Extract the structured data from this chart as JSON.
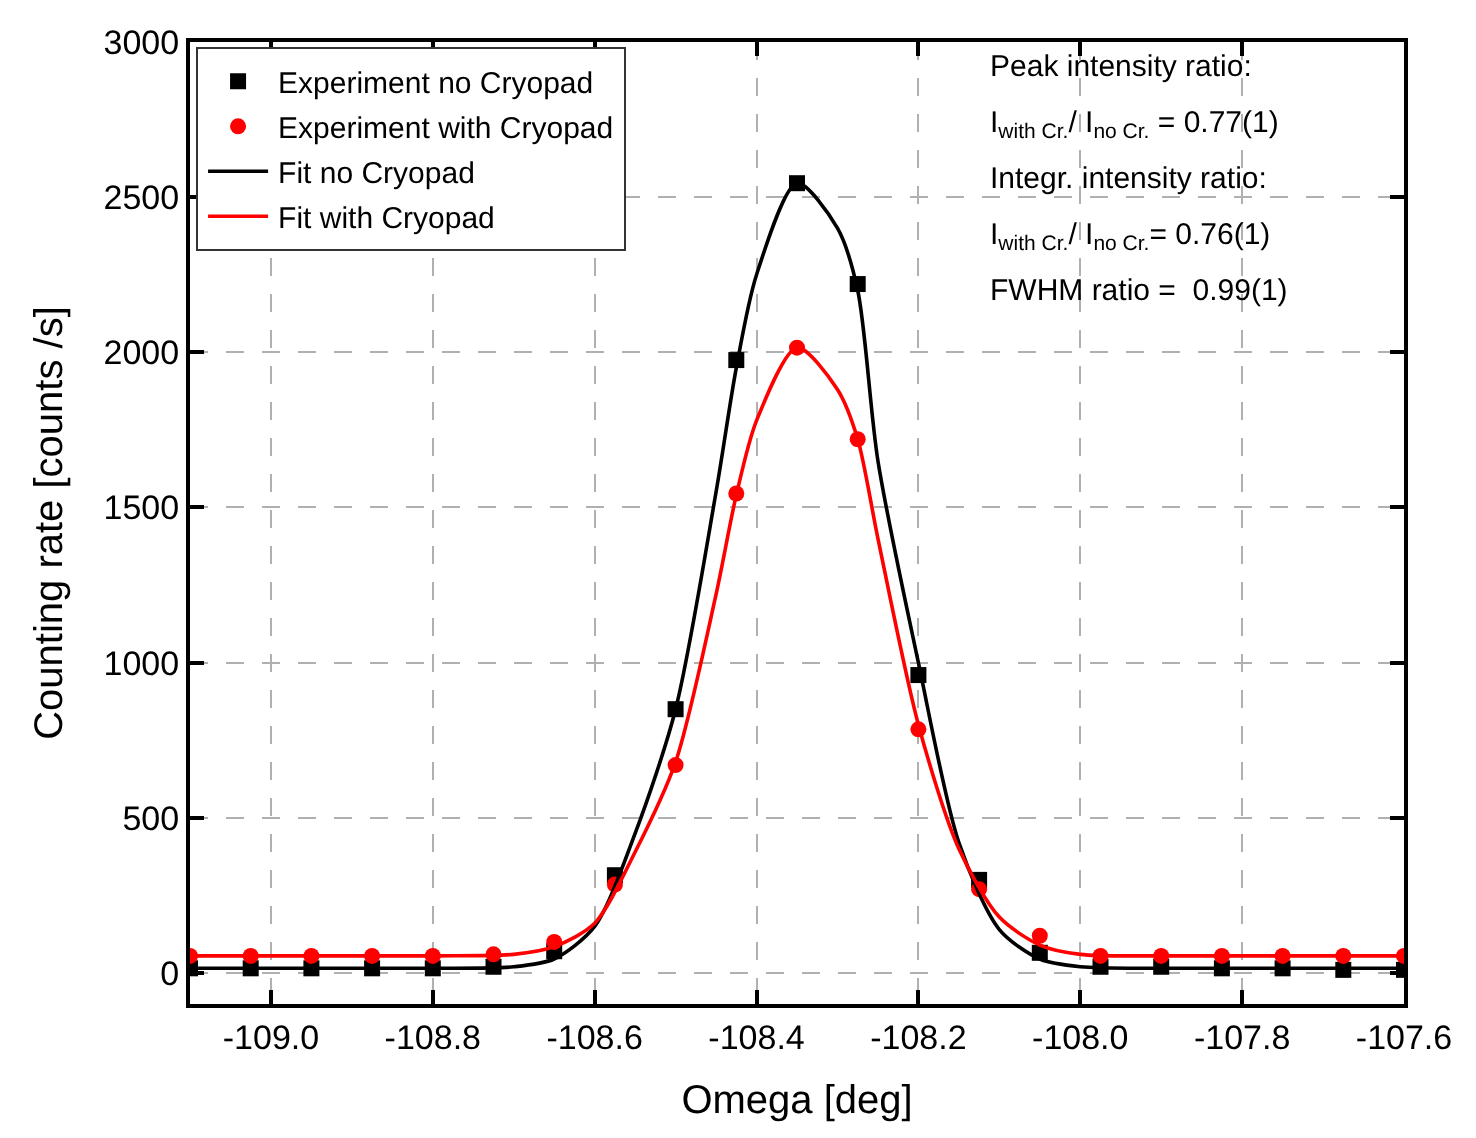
{
  "chart_data": {
    "type": "scatter",
    "xlabel": "Omega [deg]",
    "ylabel": "Counting rate [counts /s]",
    "xlim": [
      -109.1,
      -107.6
    ],
    "xticks": [
      {
        "value": -109.0,
        "label": "-109.0"
      },
      {
        "value": -108.8,
        "label": "-108.8"
      },
      {
        "value": -108.6,
        "label": "-108.6"
      },
      {
        "value": -108.4,
        "label": "-108.4"
      },
      {
        "value": -108.2,
        "label": "-108.2"
      },
      {
        "value": -108.0,
        "label": "-108.0"
      },
      {
        "value": -107.8,
        "label": "-107.8"
      },
      {
        "value": -107.6,
        "label": "-107.6"
      }
    ],
    "ylim": [
      -100,
      3000
    ],
    "yticks": [
      0,
      500,
      1000,
      1500,
      2000,
      2500,
      3000
    ],
    "grid": true,
    "legend": "top left",
    "x": [
      -109.1,
      -109.025,
      -108.95,
      -108.875,
      -108.8,
      -108.725,
      -108.65,
      -108.575,
      -108.5,
      -108.425,
      -108.35,
      -108.275,
      -108.2,
      -108.125,
      -108.05,
      -107.975,
      -107.9,
      -107.825,
      -107.75,
      -107.675,
      -107.6
    ],
    "series": [
      {
        "name": "Experiment no Cryopad",
        "marker": "square",
        "color": "#000000",
        "values": [
          15,
          15,
          15,
          15,
          15,
          20,
          70,
          315,
          850,
          1975,
          2545,
          2220,
          960,
          300,
          65,
          20,
          20,
          15,
          15,
          10,
          10
        ]
      },
      {
        "name": "Experiment with Cryopad",
        "marker": "circle",
        "color": "#ff0000",
        "values": [
          55,
          55,
          55,
          55,
          55,
          60,
          100,
          285,
          670,
          1545,
          2015,
          1720,
          785,
          270,
          120,
          55,
          55,
          55,
          55,
          55,
          55
        ]
      },
      {
        "name": "Fit no Cryopad",
        "type": "line",
        "marker": "none",
        "line_style": "solid",
        "color": "#000000",
        "x": [
          -109.1,
          -108.8,
          -108.7,
          -108.65,
          -108.6,
          -108.55,
          -108.5,
          -108.45,
          -108.425,
          -108.4,
          -108.35,
          -108.3,
          -108.275,
          -108.25,
          -108.2,
          -108.15,
          -108.1,
          -108.05,
          -108.0,
          -107.9,
          -107.6
        ],
        "values": [
          15,
          15,
          20,
          45,
          150,
          450,
          850,
          1550,
          1950,
          2250,
          2545,
          2400,
          2200,
          1650,
          1000,
          420,
          140,
          45,
          20,
          15,
          15
        ]
      },
      {
        "name": "Fit with Cryopad",
        "type": "line",
        "marker": "none",
        "line_style": "solid",
        "color": "#ff0000",
        "x": [
          -109.1,
          -108.8,
          -108.7,
          -108.65,
          -108.6,
          -108.55,
          -108.5,
          -108.45,
          -108.425,
          -108.4,
          -108.35,
          -108.3,
          -108.275,
          -108.25,
          -108.2,
          -108.15,
          -108.1,
          -108.05,
          -108.0,
          -107.9,
          -107.6
        ],
        "values": [
          55,
          55,
          60,
          85,
          160,
          390,
          680,
          1220,
          1540,
          1780,
          2015,
          1880,
          1720,
          1400,
          800,
          400,
          180,
          90,
          60,
          55,
          55
        ]
      }
    ],
    "annotations": [
      "Peak intensity ratio:",
      "I$_{with Cr.}$/ I$_{no Cr.}$ = 0.77(1)",
      "Integr. intensity ratio:",
      "I$_{with Cr.}$/ I$_{no Cr.}$= 0.76(1)",
      "FWHM ratio =  0.99(1)"
    ]
  }
}
